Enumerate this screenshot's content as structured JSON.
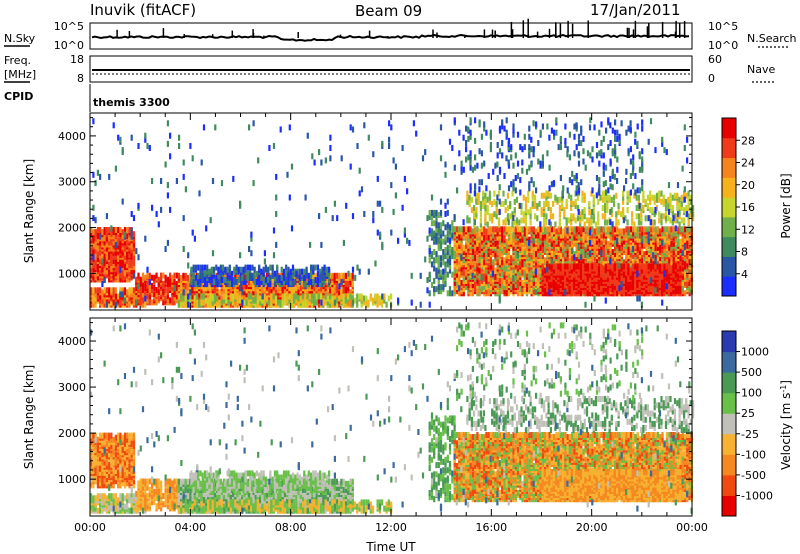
{
  "header": {
    "station": "Inuvik (fitACF)",
    "beam": "Beam 09",
    "date": "17/Jan/2011"
  },
  "nsky_panel": {
    "left_label": "N.Sky",
    "left_ticks": [
      "10^5",
      "10^0"
    ],
    "right_label": "N.Search",
    "right_ticks": [
      "10^5",
      "10^0"
    ]
  },
  "freq_panel": {
    "left_label_1": "Freq.",
    "left_label_2": "[MHz]",
    "left_ticks": [
      "18",
      "8"
    ],
    "right_label": "Nave",
    "right_ticks": [
      "60",
      "0"
    ]
  },
  "cpid": {
    "label": "CPID",
    "value": "themis 3300"
  },
  "colors": {
    "power_scale": [
      "#1c2dff",
      "#2a56a6",
      "#3f8a5e",
      "#6fb04a",
      "#c6d52c",
      "#f6b21a",
      "#f5841c",
      "#ef3b1a",
      "#e80000"
    ],
    "velocity_scale": [
      "#e80000",
      "#f04a10",
      "#f58820",
      "#f7b231",
      "#c0c0b8",
      "#68c048",
      "#4a9a56",
      "#3a6aa0",
      "#2a3ab0"
    ]
  },
  "chart_data": [
    {
      "type": "heatmap",
      "panel": "power",
      "ylabel": "Slant Range [km]",
      "ylim": [
        200,
        4500
      ],
      "yticks": [
        "1000",
        "2000",
        "3000",
        "4000"
      ],
      "xlim": [
        "00:00",
        "24:00"
      ],
      "colorbar_label": "Power [dB]",
      "colorbar_ticks": [
        "4",
        "8",
        "12",
        "16",
        "20",
        "24",
        "28"
      ],
      "colorbar_range": [
        0,
        30
      ],
      "grid": false
    },
    {
      "type": "heatmap",
      "panel": "velocity",
      "ylabel": "Slant Range [km]",
      "ylim": [
        200,
        4500
      ],
      "yticks": [
        "1000",
        "2000",
        "3000",
        "4000"
      ],
      "xlabel": "Time UT",
      "xticks": [
        "00:00",
        "04:00",
        "08:00",
        "12:00",
        "16:00",
        "20:00",
        "00:00"
      ],
      "colorbar_label": "Velocity [m s",
      "colorbar_label_sup": "-1",
      "colorbar_label_end": "]",
      "colorbar_ticks": [
        "1000",
        "500",
        "100",
        "25",
        "-25",
        "-100",
        "-500",
        "-1000"
      ],
      "grid": false
    }
  ]
}
